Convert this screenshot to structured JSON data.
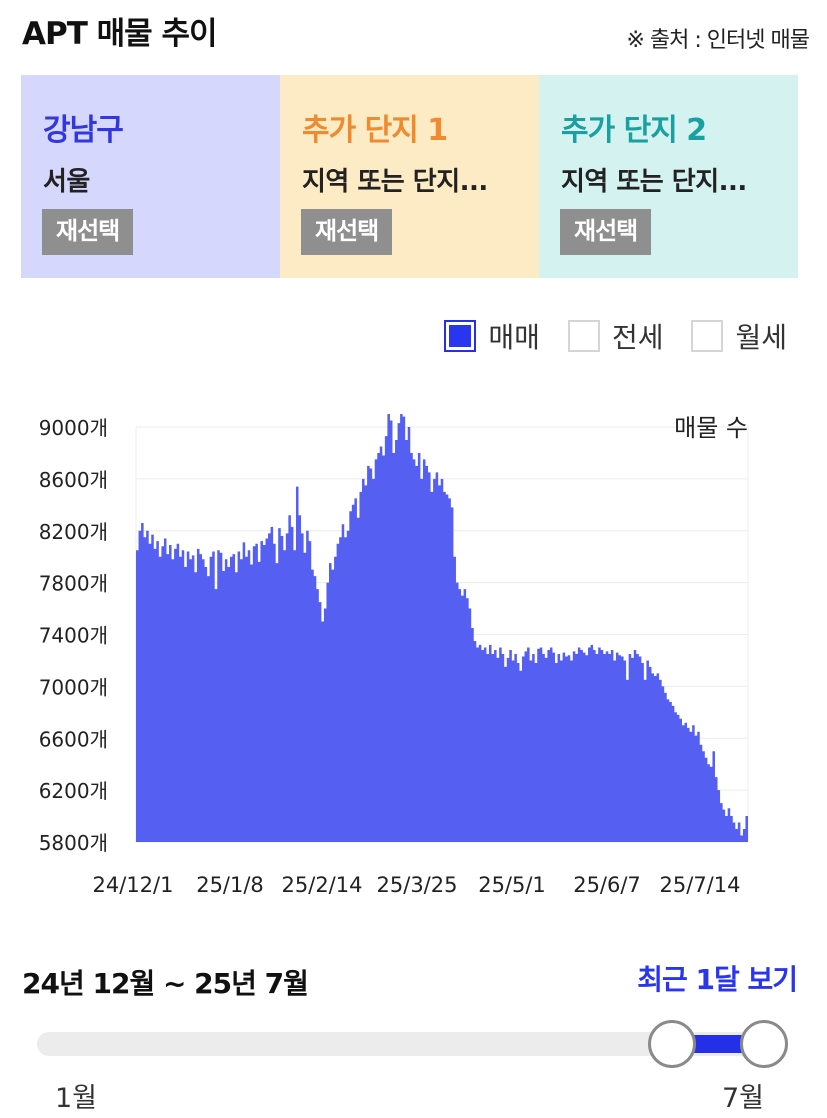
{
  "header": {
    "title": "APT 매물 추이",
    "source": "※ 출처 : 인터넷 매물"
  },
  "panels": [
    {
      "name": "강남구",
      "subtitle": "서울",
      "button": "재선택",
      "bg": "#d5d8fc",
      "name_color": "#3338dd"
    },
    {
      "name": "추가 단지 1",
      "subtitle": "지역 또는 단지...",
      "button": "재선택",
      "bg": "#fdebc5",
      "name_color": "#f08a2e"
    },
    {
      "name": "추가 단지 2",
      "subtitle": "지역 또는 단지...",
      "button": "재선택",
      "bg": "#d3f2f0",
      "name_color": "#1aa0a0"
    }
  ],
  "legend": [
    {
      "label": "매매",
      "checked": true
    },
    {
      "label": "전세",
      "checked": false
    },
    {
      "label": "월세",
      "checked": false
    }
  ],
  "chart_data": {
    "type": "area",
    "ylabel": "매물 수",
    "ylim": [
      5800,
      9000
    ],
    "yticks": [
      "9000개",
      "8600개",
      "8200개",
      "7800개",
      "7400개",
      "7000개",
      "6600개",
      "6200개",
      "5800개"
    ],
    "xticks": [
      "24/12/1",
      "25/1/8",
      "25/2/14",
      "25/3/25",
      "25/5/1",
      "25/6/7",
      "25/7/14"
    ],
    "color": "#5560f2",
    "values": [
      8050,
      8200,
      8260,
      8150,
      8200,
      8100,
      8170,
      8060,
      8120,
      8000,
      8080,
      8140,
      8020,
      8090,
      7980,
      8060,
      8100,
      8000,
      8050,
      7920,
      8040,
      7980,
      8010,
      7880,
      8060,
      8020,
      7980,
      7920,
      7850,
      8000,
      8040,
      7750,
      8050,
      8030,
      7890,
      7980,
      7920,
      8000,
      8020,
      7880,
      8040,
      7980,
      8110,
      8000,
      8050,
      7940,
      8080,
      8100,
      7960,
      8120,
      8090,
      8140,
      8180,
      8230,
      8100,
      7950,
      8220,
      8160,
      8050,
      8180,
      8320,
      8230,
      8050,
      8540,
      8320,
      8180,
      8030,
      8200,
      8120,
      7900,
      7850,
      7750,
      7650,
      7500,
      7600,
      7800,
      7950,
      7900,
      8000,
      8100,
      8150,
      8250,
      8150,
      8200,
      8350,
      8400,
      8450,
      8300,
      8500,
      8600,
      8550,
      8700,
      8680,
      8600,
      8750,
      8800,
      8850,
      8780,
      8930,
      9100,
      9050,
      8800,
      8900,
      9030,
      9100,
      9080,
      8900,
      9000,
      8800,
      8750,
      8700,
      8800,
      8600,
      8750,
      8700,
      8650,
      8500,
      8600,
      8650,
      8550,
      8600,
      8500,
      8480,
      8450,
      8380,
      8000,
      7800,
      7750,
      7700,
      7750,
      7680,
      7600,
      7450,
      7350,
      7300,
      7320,
      7280,
      7300,
      7250,
      7320,
      7250,
      7280,
      7220,
      7300,
      7250,
      7150,
      7220,
      7280,
      7200,
      7250,
      7180,
      7120,
      7230,
      7270,
      7300,
      7200,
      7250,
      7180,
      7290,
      7300,
      7250,
      7220,
      7280,
      7300,
      7260,
      7180,
      7250,
      7200,
      7260,
      7230,
      7240,
      7200,
      7270,
      7250,
      7300,
      7280,
      7260,
      7240,
      7300,
      7320,
      7280,
      7250,
      7300,
      7280,
      7250,
      7270,
      7250,
      7280,
      7200,
      7260,
      7240,
      7230,
      7200,
      7050,
      7250,
      7220,
      7280,
      7250,
      7230,
      7180,
      7050,
      7200,
      7150,
      7100,
      7080,
      7100,
      7050,
      7000,
      6950,
      6900,
      6880,
      6850,
      6800,
      6780,
      6750,
      6700,
      6720,
      6680,
      6650,
      6700,
      6620,
      6650,
      6550,
      6500,
      6450,
      6400,
      6380,
      6500,
      6300,
      6200,
      6100,
      6050,
      6000,
      6060,
      6000,
      5950,
      5900,
      5950,
      5850,
      5900,
      6000
    ]
  },
  "period": {
    "range": "24년 12월 ~ 25년 7월",
    "recent_button": "최근 1달 보기"
  },
  "slider": {
    "min_label": "1월",
    "max_label": "7월",
    "range_start": 0.85,
    "range_end": 1.0
  }
}
